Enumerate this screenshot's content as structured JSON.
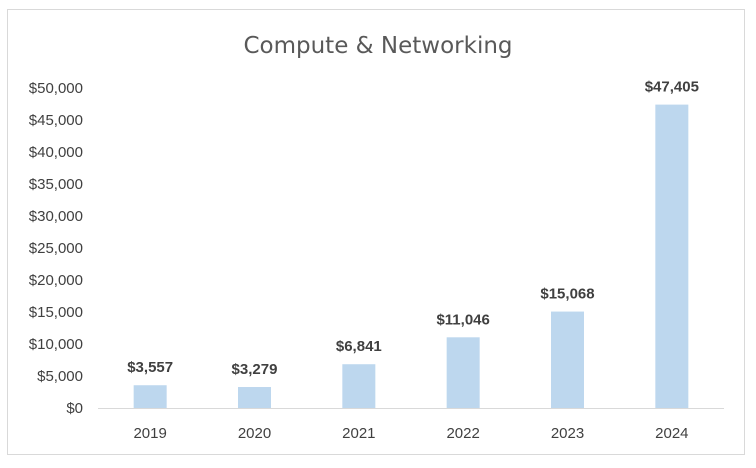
{
  "chart_data": {
    "type": "bar",
    "title": "Compute & Networking",
    "categories": [
      "2019",
      "2020",
      "2021",
      "2022",
      "2023",
      "2024"
    ],
    "values": [
      3557,
      3279,
      6841,
      11046,
      15068,
      47405
    ],
    "data_labels": [
      "$3,557",
      "$3,279",
      "$6,841",
      "$11,046",
      "$15,068",
      "$47,405"
    ],
    "y_ticks": [
      0,
      5000,
      10000,
      15000,
      20000,
      25000,
      30000,
      35000,
      40000,
      45000,
      50000
    ],
    "y_tick_labels": [
      "$0",
      "$5,000",
      "$10,000",
      "$15,000",
      "$20,000",
      "$25,000",
      "$30,000",
      "$35,000",
      "$40,000",
      "$45,000",
      "$50,000"
    ],
    "xlabel": "",
    "ylabel": "",
    "ylim": [
      0,
      50000
    ],
    "grid": false,
    "legend": "none",
    "bar_color": "#bdd7ee",
    "axis_color": "#d9d9d9",
    "text_color": "#404040"
  }
}
